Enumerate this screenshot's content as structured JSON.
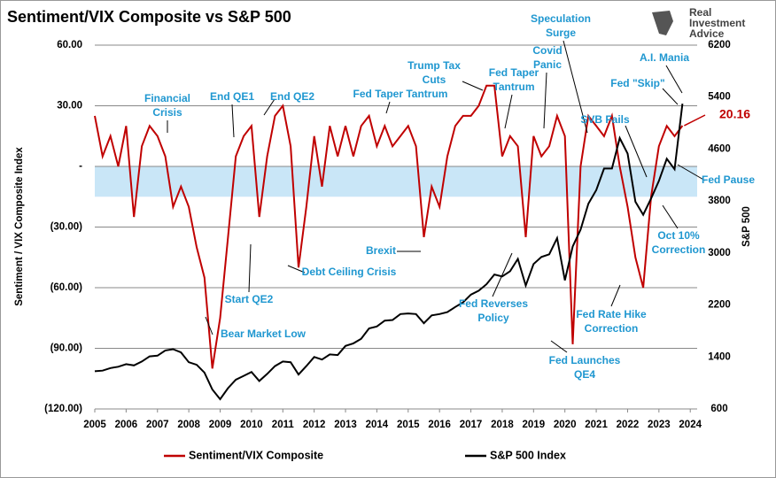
{
  "chart_data": {
    "type": "line",
    "title": "Sentiment/VIX Composite vs S&P 500",
    "logo": [
      "Real",
      "Investment",
      "Advice"
    ],
    "y_label": "Sentiment / VIX Composite Index",
    "y2_label": "S&P 500",
    "x": [
      2005.0,
      2005.25,
      2005.5,
      2005.75,
      2006.0,
      2006.25,
      2006.5,
      2006.75,
      2007.0,
      2007.25,
      2007.5,
      2007.75,
      2008.0,
      2008.25,
      2008.5,
      2008.75,
      2009.0,
      2009.25,
      2009.5,
      2009.75,
      2010.0,
      2010.25,
      2010.5,
      2010.75,
      2011.0,
      2011.25,
      2011.5,
      2011.75,
      2012.0,
      2012.25,
      2012.5,
      2012.75,
      2013.0,
      2013.25,
      2013.5,
      2013.75,
      2014.0,
      2014.25,
      2014.5,
      2014.75,
      2015.0,
      2015.25,
      2015.5,
      2015.75,
      2016.0,
      2016.25,
      2016.5,
      2016.75,
      2017.0,
      2017.25,
      2017.5,
      2017.75,
      2018.0,
      2018.25,
      2018.5,
      2018.75,
      2019.0,
      2019.25,
      2019.5,
      2019.75,
      2020.0,
      2020.25,
      2020.5,
      2020.75,
      2021.0,
      2021.25,
      2021.5,
      2021.75,
      2022.0,
      2022.25,
      2022.5,
      2022.75,
      2023.0,
      2023.25,
      2023.5,
      2023.75
    ],
    "xlim": [
      2005,
      2024.22
    ],
    "xticks": [
      2005,
      2006,
      2007,
      2008,
      2009,
      2010,
      2011,
      2012,
      2013,
      2014,
      2015,
      2016,
      2017,
      2018,
      2019,
      2020,
      2021,
      2022,
      2023,
      2024
    ],
    "ylim": [
      -120,
      60
    ],
    "yticks": [
      {
        "value": 60,
        "label": "60.00"
      },
      {
        "value": 30,
        "label": "30.00"
      },
      {
        "value": 0,
        "label": "-"
      },
      {
        "value": -30,
        "label": "(30.00)"
      },
      {
        "value": -60,
        "label": "(60.00)"
      },
      {
        "value": -90,
        "label": "(90.00)"
      },
      {
        "value": -120,
        "label": "(120.00)"
      }
    ],
    "y2lim": [
      600,
      6200
    ],
    "y2ticks": [
      600,
      1400,
      2200,
      3000,
      3800,
      4600,
      5400,
      6200
    ],
    "shaded_band": [
      0,
      -15
    ],
    "grid": true,
    "series": [
      {
        "name": "Sentiment/VIX Composite",
        "color": "#c00000",
        "axis": "y",
        "values": [
          25,
          5,
          15,
          0,
          20,
          -25,
          10,
          20,
          15,
          5,
          -20,
          -10,
          -20,
          -40,
          -55,
          -100,
          -75,
          -35,
          5,
          15,
          20,
          -25,
          5,
          25,
          30,
          10,
          -50,
          -20,
          15,
          -10,
          20,
          5,
          20,
          5,
          20,
          25,
          10,
          20,
          10,
          15,
          20,
          10,
          -35,
          -10,
          -20,
          5,
          20,
          25,
          25,
          30,
          40,
          40,
          5,
          15,
          10,
          -35,
          15,
          5,
          10,
          25,
          15,
          -88,
          0,
          25,
          20,
          15,
          25,
          0,
          -20,
          -45,
          -60,
          -15,
          10,
          20,
          15,
          20.16
        ]
      },
      {
        "name": "S&P 500 Index",
        "color": "#000000",
        "axis": "y2",
        "values": [
          1180,
          1190,
          1230,
          1250,
          1290,
          1270,
          1330,
          1410,
          1420,
          1500,
          1520,
          1470,
          1320,
          1280,
          1160,
          900,
          750,
          920,
          1050,
          1110,
          1170,
          1030,
          1140,
          1260,
          1330,
          1320,
          1130,
          1260,
          1400,
          1360,
          1440,
          1430,
          1570,
          1610,
          1680,
          1840,
          1870,
          1960,
          1970,
          2060,
          2070,
          2060,
          1920,
          2040,
          2060,
          2090,
          2170,
          2240,
          2360,
          2420,
          2520,
          2670,
          2640,
          2720,
          2910,
          2500,
          2830,
          2940,
          2980,
          3230,
          2580,
          3100,
          3360,
          3760,
          3970,
          4300,
          4300,
          4770,
          4530,
          3790,
          3590,
          3840,
          4110,
          4450,
          4290,
          5300
        ]
      }
    ],
    "annotations": [
      [
        "Financial",
        "Crisis"
      ],
      [
        "End QE1"
      ],
      [
        "End QE2"
      ],
      [
        "Fed Taper Tantrum"
      ],
      [
        "Trump Tax",
        "Cuts"
      ],
      [
        "Fed Taper",
        "Tantrum"
      ],
      [
        "Speculation",
        "Surge"
      ],
      [
        "Covid",
        "Panic"
      ],
      [
        "A.I. Mania"
      ],
      [
        "Fed \"Skip\""
      ],
      [
        "SVB Fails"
      ],
      [
        "Fed Pause"
      ],
      [
        "Oct 10%",
        "Correction"
      ],
      [
        "Fed Rate Hike",
        "Correction"
      ],
      [
        "Fed Launches",
        "QE4"
      ],
      [
        "Fed Reverses",
        "Policy"
      ],
      [
        "Debt Ceiling Crisis"
      ],
      [
        "Brexit"
      ],
      [
        "Start QE2"
      ],
      [
        "Bear Market Low"
      ]
    ]
  }
}
